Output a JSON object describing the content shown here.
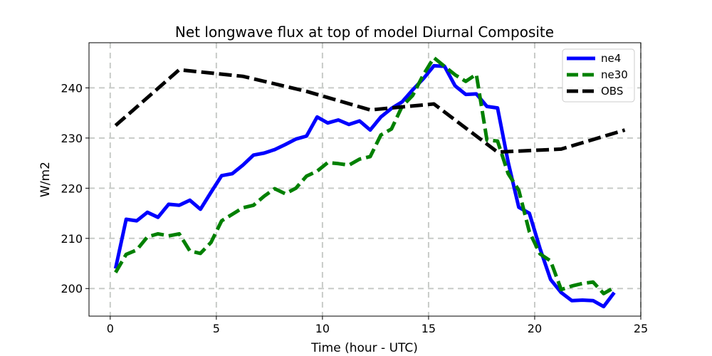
{
  "chart_data": {
    "type": "line",
    "title": "Net longwave flux at top of model Diurnal Composite",
    "xlabel": "Time (hour - UTC)",
    "ylabel": "W/m2",
    "xlim": [
      -1,
      25
    ],
    "ylim": [
      194.5,
      249
    ],
    "xticks": [
      0,
      5,
      10,
      15,
      20,
      25
    ],
    "yticks": [
      200,
      210,
      220,
      230,
      240
    ],
    "grid": true,
    "legend_position": "top-right",
    "series": [
      {
        "name": "ne4",
        "color": "#0000ff",
        "style": "solid",
        "x": [
          0.25,
          0.75,
          1.25,
          1.75,
          2.25,
          2.75,
          3.25,
          3.75,
          4.25,
          4.75,
          5.25,
          5.75,
          6.25,
          6.75,
          7.25,
          7.75,
          8.25,
          8.75,
          9.25,
          9.75,
          10.25,
          10.75,
          11.25,
          11.75,
          12.25,
          12.75,
          13.25,
          13.75,
          14.25,
          14.75,
          15.25,
          15.75,
          16.25,
          16.75,
          17.25,
          17.75,
          18.25,
          18.75,
          19.25,
          19.75,
          20.25,
          20.75,
          21.25,
          21.75,
          22.25,
          22.75,
          23.25,
          23.75
        ],
        "values": [
          204.0,
          213.8,
          213.5,
          215.2,
          214.2,
          216.8,
          216.6,
          217.6,
          215.8,
          219.2,
          222.5,
          222.9,
          224.6,
          226.6,
          227.0,
          227.7,
          228.7,
          229.8,
          230.4,
          234.2,
          233.0,
          233.6,
          232.7,
          233.4,
          231.6,
          234.2,
          235.9,
          237.2,
          239.6,
          241.8,
          244.4,
          244.3,
          240.4,
          238.7,
          238.8,
          236.3,
          236.0,
          225.2,
          216.2,
          215.0,
          208.0,
          201.8,
          199.2,
          197.6,
          197.7,
          197.6,
          196.4,
          199.2
        ]
      },
      {
        "name": "ne30",
        "color": "#008000",
        "style": "dashed",
        "x": [
          0.25,
          0.75,
          1.25,
          1.75,
          2.25,
          2.75,
          3.25,
          3.75,
          4.25,
          4.75,
          5.25,
          5.75,
          6.25,
          6.75,
          7.25,
          7.75,
          8.25,
          8.75,
          9.25,
          9.75,
          10.25,
          10.75,
          11.25,
          11.75,
          12.25,
          12.75,
          13.25,
          13.75,
          14.25,
          14.75,
          15.25,
          15.75,
          16.25,
          16.75,
          17.25,
          17.75,
          18.25,
          18.75,
          19.25,
          19.75,
          20.25,
          20.75,
          21.25,
          21.75,
          22.25,
          22.75,
          23.25,
          23.75
        ],
        "values": [
          203.2,
          206.8,
          207.7,
          210.3,
          210.9,
          210.5,
          210.9,
          207.5,
          207.0,
          209.2,
          213.5,
          214.8,
          216.1,
          216.6,
          218.4,
          219.9,
          218.9,
          220.0,
          222.4,
          223.4,
          225.1,
          224.9,
          224.6,
          225.8,
          226.3,
          230.6,
          231.8,
          236.3,
          238.5,
          242.6,
          246.0,
          244.3,
          242.6,
          241.3,
          242.7,
          229.6,
          229.4,
          222.9,
          219.6,
          211.3,
          206.9,
          205.5,
          199.8,
          200.5,
          201.0,
          201.3,
          199.0,
          200.2
        ]
      },
      {
        "name": "OBS",
        "color": "#000000",
        "style": "dashed",
        "x": [
          0.25,
          3.25,
          6.25,
          9.25,
          12.25,
          15.25,
          18.25,
          21.25,
          24.25
        ],
        "values": [
          232.5,
          243.6,
          242.3,
          239.3,
          235.6,
          236.8,
          227.2,
          227.8,
          231.6
        ]
      }
    ]
  }
}
